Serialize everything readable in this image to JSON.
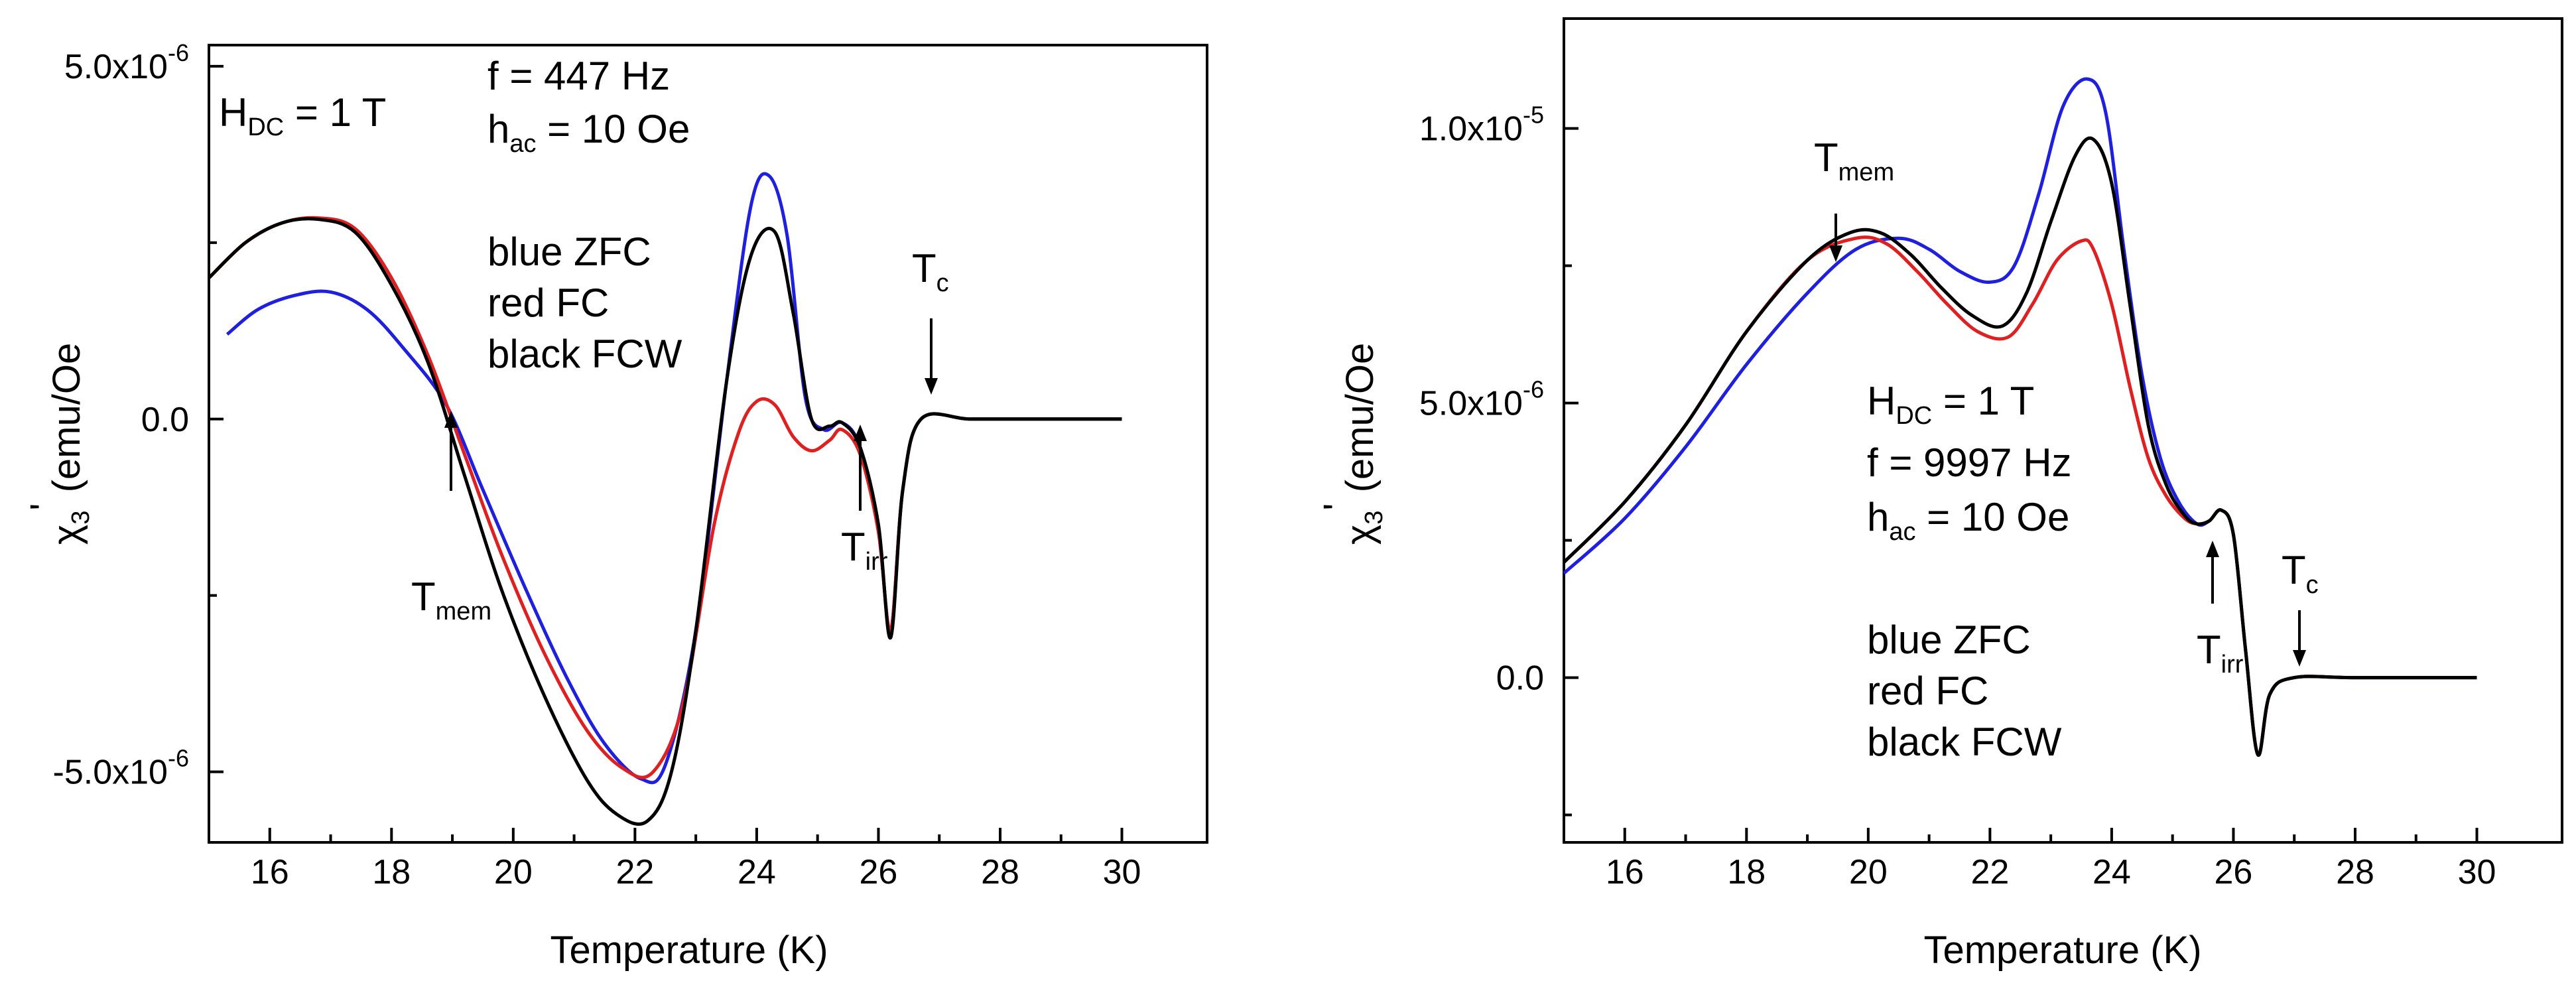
{
  "figure": {
    "panels_count": 2
  },
  "chart_data": [
    {
      "type": "line",
      "panel": "left",
      "title": "",
      "xlabel": "Temperature (K)",
      "ylabel": {
        "base": "χ",
        "sub": "3",
        "prime": "'",
        "rest": " (emu/Oe"
      },
      "xlim": [
        15,
        31.4
      ],
      "ylim": [
        -6e-06,
        5.3e-06
      ],
      "x_ticks": [
        16,
        18,
        20,
        22,
        24,
        26,
        28,
        30
      ],
      "x_tick_labels": [
        "16",
        "18",
        "20",
        "22",
        "24",
        "26",
        "28",
        "30"
      ],
      "y_ticks": [
        5e-06,
        0.0,
        -5e-06
      ],
      "y_tick_labels": [
        {
          "main": "5.0x10",
          "exp": "-6"
        },
        {
          "main": "0.0",
          "exp": ""
        },
        {
          "main": "-5.0x10",
          "exp": "-6"
        }
      ],
      "grid": false,
      "annotations": {
        "hdc": {
          "main": "H",
          "sub": "DC",
          "rest": " = 1 T"
        },
        "freq": "f = 447 Hz",
        "hac": {
          "main": "h",
          "sub": "ac",
          "rest": " = 10 Oe"
        },
        "legend_lines": [
          "blue ZFC",
          "red FC",
          "black FCW"
        ],
        "tmem": {
          "main": "T",
          "sub": "mem"
        },
        "tirr": {
          "main": "T",
          "sub": "irr"
        },
        "tc": {
          "main": "T",
          "sub": "c"
        }
      },
      "series": [
        {
          "name": "ZFC",
          "color": "#1f1fe0",
          "x": [
            15.3,
            15.8,
            16.4,
            17.0,
            17.6,
            18.2,
            18.9,
            19.5,
            20.2,
            20.9,
            21.5,
            22.1,
            22.5,
            23.0,
            23.5,
            23.9,
            24.2,
            24.5,
            24.8,
            25.1,
            25.4,
            25.7,
            26.0,
            26.2,
            26.4,
            26.7,
            27.5,
            28.5,
            30.0
          ],
          "values": [
            1.2e-06,
            1.55e-06,
            1.75e-06,
            1.8e-06,
            1.55e-06,
            1e-06,
            2e-07,
            -1e-06,
            -2.4e-06,
            -3.7e-06,
            -4.6e-06,
            -5.1e-06,
            -4.9e-06,
            -3e-06,
            5e-07,
            3e-06,
            3.45e-06,
            2.6e-06,
            3e-07,
            -1.5e-07,
            -5e-08,
            -4e-07,
            -1.6e-06,
            -3e-06,
            -1e-06,
            0.0,
            0.0,
            0.0,
            0.0
          ]
        },
        {
          "name": "FC",
          "color": "#e02020",
          "x": [
            15.0,
            15.6,
            16.2,
            16.8,
            17.4,
            18.0,
            18.6,
            19.2,
            19.8,
            20.5,
            21.2,
            21.8,
            22.3,
            22.8,
            23.3,
            23.7,
            24.0,
            24.3,
            24.6,
            24.9,
            25.2,
            25.4,
            25.7,
            26.0,
            26.2,
            26.4,
            26.7,
            27.5,
            28.5,
            30.0
          ],
          "values": [
            2e-06,
            2.5e-06,
            2.78e-06,
            2.85e-06,
            2.7e-06,
            2e-06,
            9e-07,
            -5e-07,
            -1.9e-06,
            -3.3e-06,
            -4.4e-06,
            -4.95e-06,
            -5e-06,
            -4e-06,
            -1.5e-06,
            -2e-07,
            2.5e-07,
            2e-07,
            -2.5e-07,
            -4.5e-07,
            -3e-07,
            -1.5e-07,
            -5e-07,
            -1.6e-06,
            -3e-06,
            -1e-06,
            0.0,
            0.0,
            0.0,
            0.0
          ]
        },
        {
          "name": "FCW",
          "color": "#000000",
          "x": [
            15.0,
            15.6,
            16.2,
            16.8,
            17.4,
            18.0,
            18.6,
            19.2,
            19.8,
            20.5,
            21.2,
            21.7,
            22.2,
            22.6,
            23.0,
            23.5,
            23.9,
            24.3,
            24.6,
            24.9,
            25.2,
            25.4,
            25.7,
            26.0,
            26.2,
            26.4,
            26.7,
            27.5,
            28.5,
            30.0
          ],
          "values": [
            2e-06,
            2.5e-06,
            2.78e-06,
            2.83e-06,
            2.65e-06,
            1.9e-06,
            8e-07,
            -8e-07,
            -2.4e-06,
            -3.9e-06,
            -5.1e-06,
            -5.6e-06,
            -5.7e-06,
            -5e-06,
            -3e-06,
            5e-07,
            2.3e-06,
            2.65e-06,
            1.5e-06,
            0.0,
            -1e-07,
            -5e-08,
            -4e-07,
            -1.5e-06,
            -3.1e-06,
            -1e-06,
            0.0,
            0.0,
            0.0,
            0.0
          ]
        }
      ]
    },
    {
      "type": "line",
      "panel": "right",
      "title": "",
      "xlabel": "Temperature (K)",
      "ylabel": {
        "base": "χ",
        "sub": "3",
        "prime": "'",
        "rest": " (emu/Oe"
      },
      "xlim": [
        15,
        31.4
      ],
      "ylim": [
        -3e-06,
        1.2e-05
      ],
      "x_ticks": [
        16,
        18,
        20,
        22,
        24,
        26,
        28,
        30
      ],
      "x_tick_labels": [
        "16",
        "18",
        "20",
        "22",
        "24",
        "26",
        "28",
        "30"
      ],
      "y_ticks": [
        1e-05,
        5e-06,
        0.0
      ],
      "y_tick_labels": [
        {
          "main": "1.0x10",
          "exp": "-5"
        },
        {
          "main": "5.0x10",
          "exp": "-6"
        },
        {
          "main": "0.0",
          "exp": ""
        }
      ],
      "grid": false,
      "annotations": {
        "hdc": {
          "main": "H",
          "sub": "DC",
          "rest": " = 1 T"
        },
        "freq": "f = 9997 Hz",
        "hac": {
          "main": "h",
          "sub": "ac",
          "rest": " = 10 Oe"
        },
        "legend_lines": [
          "blue ZFC",
          "red FC",
          "black FCW"
        ],
        "tmem": {
          "main": "T",
          "sub": "mem"
        },
        "tirr": {
          "main": "T",
          "sub": "irr"
        },
        "tc": {
          "main": "T",
          "sub": "c"
        }
      },
      "series": [
        {
          "name": "ZFC",
          "color": "#1f1fe0",
          "x": [
            15.0,
            16.0,
            17.0,
            18.0,
            19.0,
            19.8,
            20.5,
            21.0,
            21.5,
            22.0,
            22.4,
            22.8,
            23.2,
            23.6,
            23.9,
            24.2,
            24.5,
            24.8,
            25.1,
            25.4,
            25.6,
            25.8,
            26.0,
            26.2,
            26.4,
            26.6,
            27.0,
            28.0,
            30.0
          ],
          "values": [
            1.9e-06,
            2.9e-06,
            4.2e-06,
            5.7e-06,
            7e-06,
            7.8e-06,
            8e-06,
            7.8e-06,
            7.4e-06,
            7.2e-06,
            7.5e-06,
            8.8e-06,
            1.04e-05,
            1.09e-05,
            1.03e-05,
            7.8e-06,
            5.5e-06,
            4e-06,
            3.2e-06,
            2.8e-06,
            2.85e-06,
            3.05e-06,
            2.6e-06,
            5e-07,
            -1.4e-06,
            -3e-07,
            0.0,
            0.0,
            0.0
          ]
        },
        {
          "name": "FC",
          "color": "#e02020",
          "x": [
            15.0,
            16.0,
            17.0,
            18.0,
            19.0,
            19.8,
            20.3,
            20.8,
            21.3,
            21.8,
            22.3,
            22.7,
            23.1,
            23.5,
            23.7,
            24.0,
            24.3,
            24.6,
            24.9,
            25.2,
            25.4,
            25.6,
            25.8,
            26.0,
            26.2,
            26.4,
            26.6,
            27.0,
            28.0,
            30.0
          ],
          "values": [
            2.1e-06,
            3.2e-06,
            4.6e-06,
            6.3e-06,
            7.6e-06,
            8e-06,
            7.9e-06,
            7.4e-06,
            6.8e-06,
            6.3e-06,
            6.2e-06,
            6.8e-06,
            7.6e-06,
            7.95e-06,
            7.8e-06,
            6.8e-06,
            5.3e-06,
            4e-06,
            3.3e-06,
            2.9e-06,
            2.8e-06,
            2.85e-06,
            3.05e-06,
            2.6e-06,
            5e-07,
            -1.4e-06,
            -3e-07,
            0.0,
            0.0,
            0.0
          ]
        },
        {
          "name": "FCW",
          "color": "#000000",
          "x": [
            15.0,
            16.0,
            17.0,
            18.0,
            19.0,
            19.7,
            20.2,
            20.7,
            21.2,
            21.7,
            22.2,
            22.6,
            23.0,
            23.4,
            23.7,
            24.0,
            24.3,
            24.6,
            24.9,
            25.2,
            25.4,
            25.6,
            25.8,
            26.0,
            26.2,
            26.4,
            26.6,
            27.0,
            28.0,
            30.0
          ],
          "values": [
            2.1e-06,
            3.2e-06,
            4.6e-06,
            6.3e-06,
            7.6e-06,
            8.1e-06,
            8.1e-06,
            7.7e-06,
            7.1e-06,
            6.6e-06,
            6.4e-06,
            7e-06,
            8.3e-06,
            9.5e-06,
            9.8e-06,
            9e-06,
            6.8e-06,
            4.6e-06,
            3.5e-06,
            2.95e-06,
            2.8e-06,
            2.85e-06,
            3.05e-06,
            2.6e-06,
            5e-07,
            -1.4e-06,
            -3e-07,
            0.0,
            0.0,
            0.0
          ]
        }
      ]
    }
  ]
}
